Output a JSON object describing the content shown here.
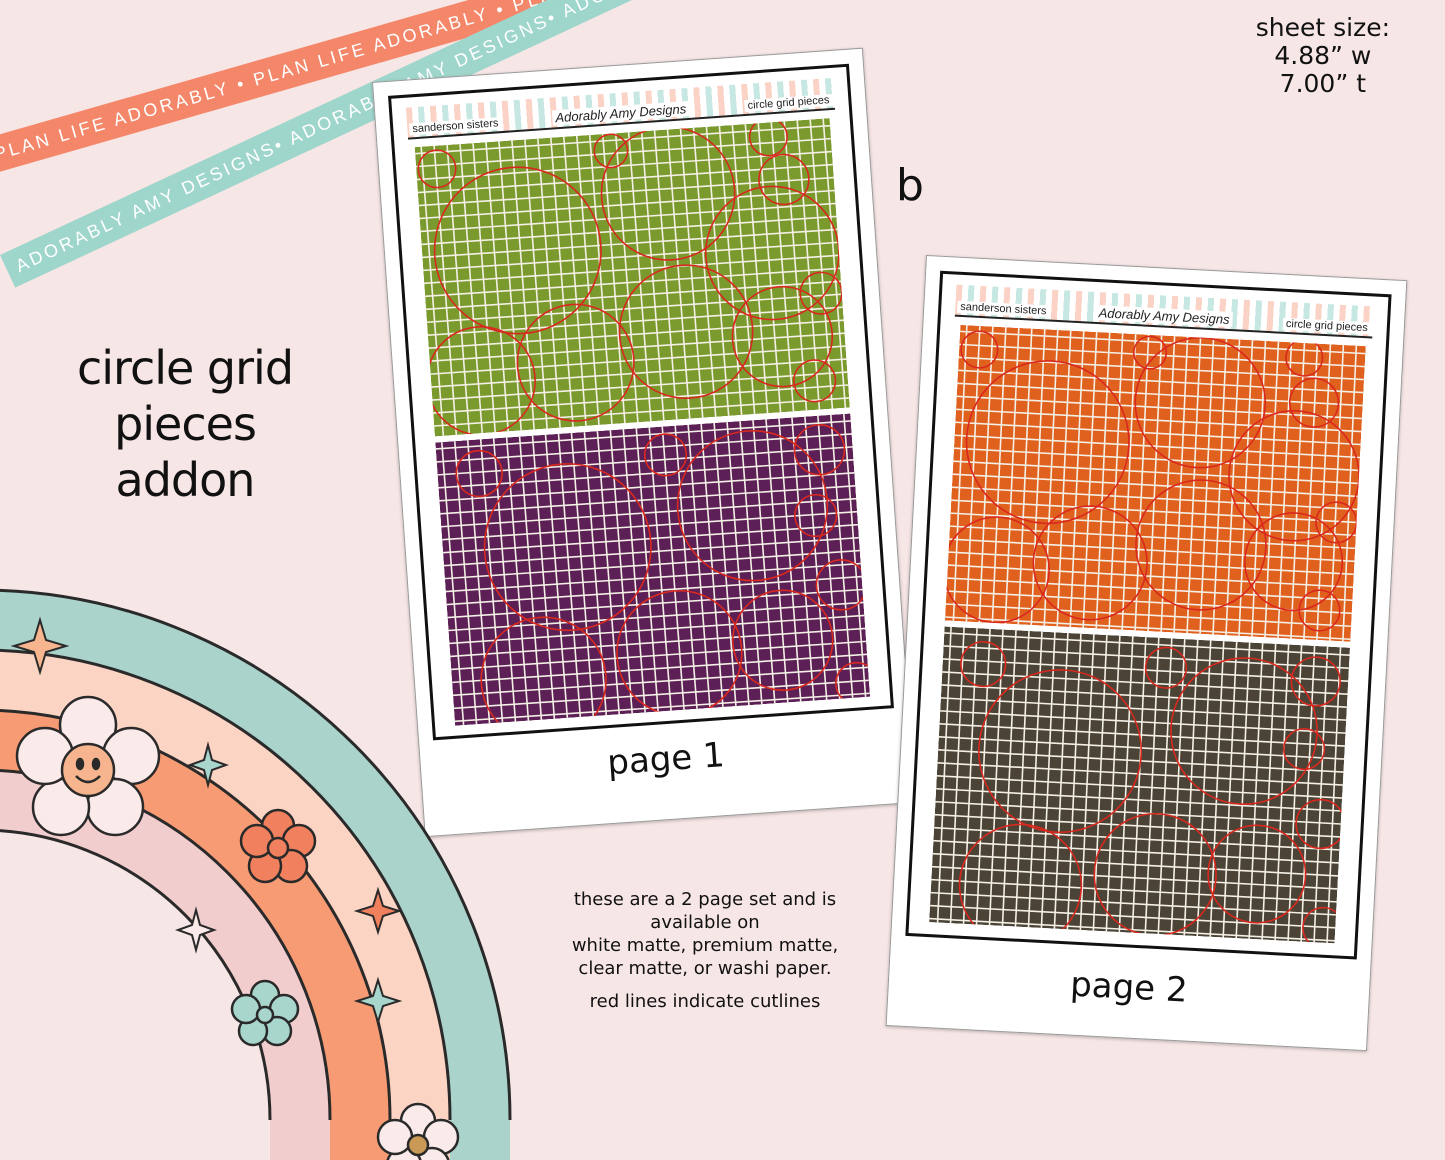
{
  "ribbons": {
    "coral_text": "PLAN LIFE ADORABLY • PLAN LIFE ADORABLY • PLAN LIFE ADORABLY •",
    "teal_text": "ADORABLY AMY DESIGNS• ADORABLY AMY DESIGNS• ADORABLY AMY DESIGNS•"
  },
  "sheet_size": {
    "label": "sheet size:",
    "width": "4.88” w",
    "height": "7.00” t"
  },
  "title": {
    "line1": "circle grid",
    "line2": "pieces",
    "line3": "addon"
  },
  "variant_label": "b",
  "page1": {
    "header_left": "sanderson sisters",
    "header_logo": "Adorably Amy Designs",
    "header_right": "circle grid pieces",
    "caption": "page 1",
    "top_color": "#7b9a2e",
    "bottom_color": "#5c1f56"
  },
  "page2": {
    "header_left": "sanderson sisters",
    "header_logo": "Adorably Amy Designs",
    "header_right": "circle grid pieces",
    "caption": "page 2",
    "top_color": "#e0601e",
    "bottom_color": "#4a4336"
  },
  "info": {
    "line1": "these are a 2 page set and is available on",
    "line2": "white matte, premium matte, clear matte, or washi paper.",
    "line3": "red lines indicate cutlines"
  },
  "colors": {
    "background": "#f7e6e6",
    "cutline": "#d9281e",
    "coral": "#f4876a",
    "teal": "#9fd6cc"
  }
}
